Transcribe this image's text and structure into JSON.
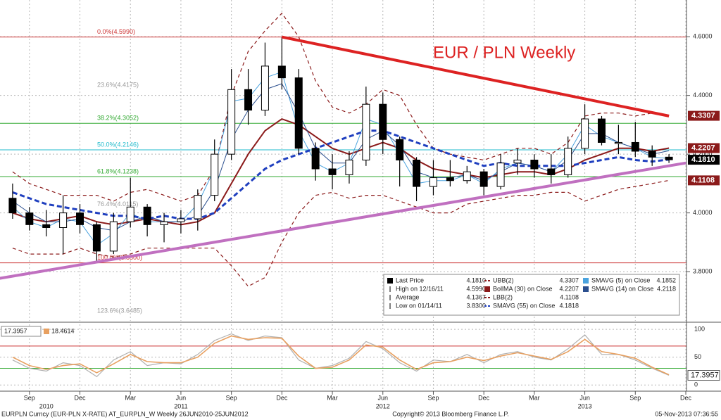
{
  "chart_data": [
    {
      "type": "candlestick",
      "title": "EUR / PLN Weekly",
      "x": [
        "2010-08",
        "2010-09",
        "2010-10",
        "2010-11",
        "2010-12",
        "2011-01",
        "2011-02",
        "2011-03",
        "2011-04",
        "2011-05",
        "2011-06",
        "2011-07",
        "2011-08",
        "2011-09",
        "2011-10",
        "2011-11",
        "2011-12",
        "2012-01",
        "2012-02",
        "2012-03",
        "2012-04",
        "2012-05",
        "2012-06",
        "2012-07",
        "2012-08",
        "2012-09",
        "2012-10",
        "2012-11",
        "2012-12",
        "2013-01",
        "2013-02",
        "2013-03",
        "2013-04",
        "2013-05",
        "2013-06",
        "2013-07",
        "2013-08",
        "2013-09",
        "2013-10",
        "2013-11"
      ],
      "open": [
        4.05,
        4.0,
        3.96,
        3.95,
        4.0,
        3.96,
        3.87,
        3.97,
        4.02,
        3.96,
        3.97,
        3.98,
        4.06,
        4.2,
        4.42,
        4.35,
        4.5,
        4.46,
        4.22,
        4.15,
        4.13,
        4.18,
        4.37,
        4.25,
        4.18,
        4.09,
        4.12,
        4.11,
        4.14,
        4.09,
        4.17,
        4.18,
        4.15,
        4.13,
        4.22,
        4.32,
        4.24,
        4.24,
        4.21,
        4.19
      ],
      "high": [
        4.1,
        4.02,
        4.01,
        4.06,
        4.03,
        3.97,
        4.0,
        4.12,
        4.03,
        4.0,
        4.01,
        4.08,
        4.25,
        4.49,
        4.49,
        4.58,
        4.599,
        4.49,
        4.24,
        4.2,
        4.21,
        4.43,
        4.41,
        4.26,
        4.19,
        4.18,
        4.18,
        4.16,
        4.15,
        4.2,
        4.22,
        4.2,
        4.2,
        4.26,
        4.37,
        4.33,
        4.3,
        4.31,
        4.23,
        4.2
      ],
      "low": [
        3.98,
        3.94,
        3.92,
        3.86,
        3.93,
        3.83,
        3.86,
        3.95,
        3.92,
        3.9,
        3.93,
        3.94,
        4.04,
        4.18,
        4.3,
        4.33,
        4.42,
        4.2,
        4.11,
        4.08,
        4.1,
        4.16,
        4.2,
        4.09,
        4.04,
        4.06,
        4.09,
        4.1,
        4.06,
        4.08,
        4.13,
        4.12,
        4.1,
        4.12,
        4.2,
        4.23,
        4.2,
        4.19,
        4.16,
        4.17
      ],
      "close": [
        4.0,
        3.96,
        3.95,
        4.0,
        3.96,
        3.87,
        3.97,
        4.02,
        3.96,
        3.97,
        3.98,
        4.06,
        4.2,
        4.42,
        4.35,
        4.5,
        4.46,
        4.22,
        4.15,
        4.13,
        4.18,
        4.37,
        4.25,
        4.18,
        4.09,
        4.12,
        4.11,
        4.14,
        4.09,
        4.17,
        4.18,
        4.15,
        4.13,
        4.22,
        4.32,
        4.24,
        4.24,
        4.21,
        4.19,
        4.181
      ],
      "series": [
        {
          "color": "#8b1a1a",
          "dash": true,
          "width": 1.2,
          "values": [
            4.14,
            4.1,
            4.08,
            4.06,
            4.06,
            4.06,
            4.04,
            4.07,
            4.08,
            4.06,
            4.04,
            4.06,
            4.15,
            4.4,
            4.55,
            4.62,
            4.68,
            4.6,
            4.45,
            4.36,
            4.34,
            4.37,
            4.42,
            4.4,
            4.3,
            4.22,
            4.2,
            4.19,
            4.18,
            4.2,
            4.22,
            4.22,
            4.2,
            4.24,
            4.33,
            4.34,
            4.34,
            4.33,
            4.34,
            4.3307
          ]
        },
        {
          "color": "#8b1a1a",
          "dash": true,
          "width": 1.2,
          "values": [
            3.88,
            3.86,
            3.86,
            3.86,
            3.88,
            3.86,
            3.85,
            3.86,
            3.88,
            3.88,
            3.88,
            3.88,
            3.88,
            3.82,
            3.75,
            3.78,
            3.9,
            4.0,
            4.06,
            4.07,
            4.05,
            4.06,
            4.06,
            4.04,
            4.02,
            4.0,
            4.0,
            4.03,
            4.04,
            4.05,
            4.06,
            4.06,
            4.07,
            4.07,
            4.04,
            4.06,
            4.08,
            4.09,
            4.1,
            4.1108
          ]
        },
        {
          "color": "#8b1a1a",
          "dash": false,
          "width": 2,
          "values": [
            4.0,
            3.98,
            3.97,
            3.98,
            3.99,
            3.97,
            3.96,
            3.97,
            3.98,
            3.97,
            3.96,
            3.97,
            4.0,
            4.1,
            4.2,
            4.28,
            4.32,
            4.3,
            4.26,
            4.22,
            4.2,
            4.22,
            4.24,
            4.22,
            4.18,
            4.15,
            4.14,
            4.13,
            4.12,
            4.13,
            4.14,
            4.14,
            4.13,
            4.15,
            4.18,
            4.2,
            4.22,
            4.22,
            4.21,
            4.2207
          ]
        },
        {
          "color": "#4aa3df",
          "dash": false,
          "width": 1,
          "values": [
            4.02,
            3.97,
            3.95,
            3.98,
            3.97,
            3.89,
            3.93,
            4.0,
            3.97,
            3.97,
            3.97,
            4.03,
            4.15,
            4.38,
            4.39,
            4.46,
            4.48,
            4.28,
            4.17,
            4.14,
            4.17,
            4.32,
            4.3,
            4.2,
            4.1,
            4.11,
            4.11,
            4.13,
            4.1,
            4.15,
            4.17,
            4.16,
            4.14,
            4.2,
            4.3,
            4.26,
            4.24,
            4.22,
            4.19,
            4.1852
          ]
        },
        {
          "color": "#2b4f8f",
          "dash": false,
          "width": 1,
          "values": [
            4.04,
            4.0,
            3.97,
            3.97,
            3.98,
            3.95,
            3.94,
            3.97,
            3.99,
            3.97,
            3.97,
            3.99,
            4.08,
            4.25,
            4.35,
            4.42,
            4.44,
            4.34,
            4.22,
            4.17,
            4.17,
            4.25,
            4.28,
            4.23,
            4.14,
            4.12,
            4.12,
            4.13,
            4.11,
            4.14,
            4.17,
            4.16,
            4.14,
            4.18,
            4.27,
            4.27,
            4.24,
            4.22,
            4.2,
            4.2118
          ]
        },
        {
          "color": "#1f3fbf",
          "dash": true,
          "width": 3,
          "values": [
            4.07,
            4.05,
            4.03,
            4.02,
            4.01,
            4.0,
            3.99,
            3.99,
            3.98,
            3.99,
            3.98,
            3.98,
            4.0,
            4.05,
            4.1,
            4.15,
            4.18,
            4.2,
            4.22,
            4.24,
            4.26,
            4.28,
            4.28,
            4.26,
            4.24,
            4.22,
            4.2,
            4.18,
            4.16,
            4.17,
            4.16,
            4.16,
            4.16,
            4.16,
            4.17,
            4.18,
            4.19,
            4.18,
            4.175,
            4.1818
          ]
        }
      ],
      "xlim": [
        "2010-07",
        "2013-12"
      ],
      "xticks": [
        {
          "value": "2010-09",
          "label": "Sep"
        },
        {
          "value": "2010-12",
          "label": "Dec"
        },
        {
          "value": "2011-03",
          "label": "Mar"
        },
        {
          "value": "2011-06",
          "label": "Jun"
        },
        {
          "value": "2011-09",
          "label": "Sep"
        },
        {
          "value": "2011-12",
          "label": "Dec"
        },
        {
          "value": "2012-03",
          "label": "Mar"
        },
        {
          "value": "2012-06",
          "label": "Jun"
        },
        {
          "value": "2012-09",
          "label": "Sep"
        },
        {
          "value": "2012-12",
          "label": "Dec"
        },
        {
          "value": "2013-03",
          "label": "Mar"
        },
        {
          "value": "2013-06",
          "label": "Jun"
        },
        {
          "value": "2013-09",
          "label": "Sep"
        },
        {
          "value": "2013-12",
          "label": "Dec"
        }
      ],
      "year_labels": [
        {
          "value": "2010-10",
          "label": "2010"
        },
        {
          "value": "2011-06",
          "label": "2011"
        },
        {
          "value": "2012-06",
          "label": "2012"
        },
        {
          "value": "2013-06",
          "label": "2013"
        }
      ],
      "ylim": [
        3.635,
        4.725
      ],
      "yticks": [
        {
          "value": 3.8,
          "label": "3.8000"
        },
        {
          "value": 4.0,
          "label": "4.0000"
        },
        {
          "value": 4.2,
          "label": "4.2000"
        },
        {
          "value": 4.4,
          "label": "4.4000"
        },
        {
          "value": 4.6,
          "label": "4.6000"
        }
      ],
      "grid": true,
      "fib_levels": [
        {
          "value": 4.599,
          "label": "0.0%(4.5990)",
          "color": "#cc3333",
          "line": true
        },
        {
          "value": 4.4175,
          "label": "23.6%(4.4175)",
          "color": "#999999",
          "line": false
        },
        {
          "value": 4.3052,
          "label": "38.2%(4.3052)",
          "color": "#33aa33",
          "line": true
        },
        {
          "value": 4.2146,
          "label": "50.0%(4.2146)",
          "color": "#22bbcc",
          "line": true
        },
        {
          "value": 4.1238,
          "label": "61.8%(4.1238)",
          "color": "#33aa33",
          "line": true
        },
        {
          "value": 4.0115,
          "label": "76.4%(4.0115)",
          "color": "#999999",
          "line": false
        },
        {
          "value": 3.83,
          "label": "100.0%(3.8300)",
          "color": "#cc3333",
          "line": true
        },
        {
          "value": 3.6485,
          "label": "123.6%(3.6485)",
          "color": "#999999",
          "line": false
        }
      ],
      "trend_lines": [
        {
          "color": "#dd2222",
          "width": 4,
          "from": {
            "x": "2011-12",
            "y": 4.599
          },
          "to": {
            "x": "2013-11",
            "y": 4.33
          }
        },
        {
          "color": "#c070c0",
          "width": 4,
          "from": {
            "x": "2010-07",
            "y": 3.775
          },
          "to": {
            "x": "2013-12",
            "y": 4.17
          }
        }
      ],
      "price_tags": [
        {
          "value": 4.3307,
          "label": "4.3307",
          "color": "#8b1a1a"
        },
        {
          "value": 4.2207,
          "label": "4.2207",
          "color": "#8b1a1a"
        },
        {
          "value": 4.181,
          "label": "4.1810",
          "color": "#000000"
        },
        {
          "value": 4.1108,
          "label": "4.1108",
          "color": "#8b1a1a"
        }
      ],
      "legend": [
        [
          {
            "name": "Last Price",
            "value": "4.1810",
            "color": "#000000",
            "style": "square"
          },
          {
            "name": "High on 12/16/11",
            "value": "4.5990",
            "color": "#000000",
            "style": "marker"
          },
          {
            "name": "Average",
            "value": "4.1367",
            "color": "#000000",
            "style": "marker"
          },
          {
            "name": "Low on 01/14/11",
            "value": "3.8300",
            "color": "#000000",
            "style": "marker"
          }
        ],
        [
          {
            "name": "UBB(2)",
            "value": "4.3307",
            "color": "#8b1a1a",
            "style": "dashed"
          },
          {
            "name": "BollMA (30) on Close",
            "value": "4.2207",
            "color": "#8b1a1a",
            "style": "square"
          },
          {
            "name": "LBB(2)",
            "value": "4.1108",
            "color": "#8b1a1a",
            "style": "dashed"
          },
          {
            "name": "SMAVG (55) on Close",
            "value": "4.1818",
            "color": "#1f3fbf",
            "style": "dashed"
          }
        ],
        [
          {
            "name": "SMAVG (5) on Close",
            "value": "4.1852",
            "color": "#4aa3df",
            "style": "square"
          },
          {
            "name": "SMAVG (14) on Close",
            "value": "4.2118",
            "color": "#2b4f8f",
            "style": "square"
          }
        ]
      ]
    },
    {
      "type": "line",
      "series": [
        {
          "color": "#b0b0b0",
          "values": [
            45,
            30,
            25,
            40,
            35,
            15,
            45,
            60,
            35,
            40,
            38,
            55,
            80,
            92,
            80,
            88,
            85,
            45,
            30,
            35,
            48,
            78,
            65,
            40,
            25,
            45,
            42,
            55,
            40,
            55,
            60,
            50,
            45,
            65,
            90,
            55,
            55,
            45,
            30,
            17.3957
          ]
        },
        {
          "color": "#e8a060",
          "values": [
            50,
            35,
            28,
            35,
            38,
            22,
            38,
            55,
            42,
            40,
            40,
            50,
            75,
            88,
            82,
            85,
            84,
            52,
            30,
            32,
            45,
            72,
            68,
            45,
            28,
            40,
            42,
            50,
            44,
            52,
            58,
            52,
            46,
            60,
            82,
            60,
            55,
            48,
            32,
            18.4614
          ]
        }
      ],
      "ylim": [
        -11,
        109
      ],
      "yticks": [
        0,
        50,
        100
      ],
      "hlines": [
        {
          "value": 70,
          "color": "#cc3333"
        },
        {
          "value": 30,
          "color": "#33aa33"
        }
      ]
    }
  ],
  "footer": {
    "left": "EURPLN Curncy (EUR-PLN X-RATE) AT_EURPLN_W  Weekly 26JUN2010-25JUN2012",
    "center": "Copyright© 2013 Bloomberg Finance L.P.",
    "right": "05-Nov-2013 07:36:55"
  }
}
